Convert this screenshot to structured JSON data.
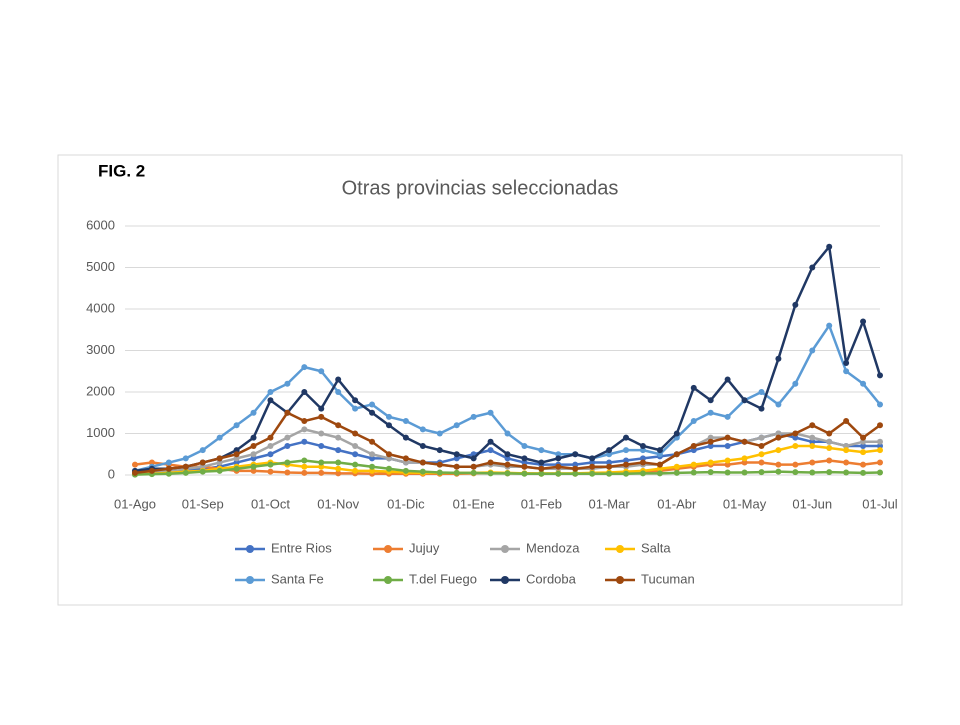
{
  "figure_label": "FIG. 2",
  "chart_data": {
    "type": "line",
    "title": "Otras provincias seleccionadas",
    "categories": [
      "01-Ago",
      null,
      null,
      null,
      "01-Sep",
      null,
      null,
      null,
      "01-Oct",
      null,
      null,
      null,
      "01-Nov",
      null,
      null,
      null,
      "01-Dic",
      null,
      null,
      null,
      "01-Ene",
      null,
      null,
      null,
      "01-Feb",
      null,
      null,
      null,
      "01-Mar",
      null,
      null,
      null,
      "01-Abr",
      null,
      null,
      null,
      "01-May",
      null,
      null,
      null,
      "01-Jun",
      null,
      null,
      null,
      "01-Jul"
    ],
    "ylim": [
      0,
      6000
    ],
    "yticks": [
      0,
      1000,
      2000,
      3000,
      4000,
      5000,
      6000
    ],
    "grid": true,
    "legend": "bottom",
    "series": [
      {
        "name": "Entre Rios",
        "color": "#4472c4",
        "values": [
          30,
          50,
          80,
          100,
          150,
          200,
          300,
          400,
          500,
          700,
          800,
          700,
          600,
          500,
          400,
          400,
          300,
          300,
          300,
          400,
          500,
          600,
          400,
          300,
          250,
          250,
          250,
          300,
          300,
          350,
          400,
          450,
          500,
          600,
          700,
          700,
          800,
          900,
          1000,
          900,
          800,
          800,
          700,
          700,
          700
        ]
      },
      {
        "name": "Jujuy",
        "color": "#ed7d31",
        "values": [
          250,
          300,
          250,
          200,
          200,
          150,
          100,
          100,
          80,
          60,
          50,
          50,
          40,
          40,
          30,
          30,
          30,
          30,
          30,
          30,
          40,
          50,
          40,
          40,
          30,
          30,
          30,
          40,
          50,
          60,
          80,
          100,
          150,
          200,
          250,
          250,
          300,
          300,
          250,
          250,
          300,
          350,
          300,
          250,
          300
        ]
      },
      {
        "name": "Mendoza",
        "color": "#a5a5a5",
        "values": [
          50,
          80,
          100,
          150,
          200,
          300,
          400,
          500,
          700,
          900,
          1100,
          1000,
          900,
          700,
          500,
          400,
          300,
          300,
          250,
          200,
          200,
          250,
          200,
          200,
          150,
          150,
          150,
          150,
          200,
          200,
          250,
          250,
          500,
          700,
          900,
          900,
          800,
          900,
          1000,
          1000,
          900,
          800,
          700,
          800,
          800
        ]
      },
      {
        "name": "Salta",
        "color": "#ffc000",
        "values": [
          20,
          30,
          50,
          80,
          100,
          150,
          200,
          250,
          300,
          250,
          200,
          200,
          150,
          100,
          100,
          80,
          60,
          50,
          50,
          50,
          50,
          60,
          50,
          40,
          40,
          40,
          40,
          50,
          60,
          80,
          100,
          150,
          200,
          250,
          300,
          350,
          400,
          500,
          600,
          700,
          700,
          650,
          600,
          550,
          600
        ]
      },
      {
        "name": "Santa Fe",
        "color": "#5b9bd5",
        "values": [
          100,
          200,
          300,
          400,
          600,
          900,
          1200,
          1500,
          2000,
          2200,
          2600,
          2500,
          2000,
          1600,
          1700,
          1400,
          1300,
          1100,
          1000,
          1200,
          1400,
          1500,
          1000,
          700,
          600,
          500,
          500,
          400,
          500,
          600,
          600,
          500,
          900,
          1300,
          1500,
          1400,
          1800,
          2000,
          1700,
          2200,
          3000,
          3600,
          2500,
          2200,
          1700
        ]
      },
      {
        "name": "T.del Fuego",
        "color": "#70ad47",
        "values": [
          10,
          20,
          30,
          50,
          80,
          100,
          150,
          200,
          250,
          300,
          350,
          300,
          300,
          250,
          200,
          150,
          100,
          80,
          60,
          50,
          50,
          40,
          40,
          30,
          30,
          30,
          30,
          30,
          30,
          30,
          40,
          40,
          50,
          60,
          70,
          60,
          60,
          70,
          80,
          70,
          60,
          70,
          60,
          50,
          60
        ]
      },
      {
        "name": "Cordoba",
        "color": "#203864",
        "values": [
          100,
          150,
          150,
          200,
          300,
          400,
          600,
          900,
          1800,
          1500,
          2000,
          1600,
          2300,
          1800,
          1500,
          1200,
          900,
          700,
          600,
          500,
          400,
          800,
          500,
          400,
          300,
          400,
          500,
          400,
          600,
          900,
          700,
          600,
          1000,
          2100,
          1800,
          2300,
          1800,
          1600,
          2800,
          4100,
          5000,
          5500,
          2700,
          3700,
          2400
        ]
      },
      {
        "name": "Tucuman",
        "color": "#9e480e",
        "values": [
          50,
          100,
          150,
          200,
          300,
          400,
          500,
          700,
          900,
          1500,
          1300,
          1400,
          1200,
          1000,
          800,
          500,
          400,
          300,
          250,
          200,
          200,
          300,
          250,
          200,
          150,
          200,
          150,
          200,
          200,
          250,
          300,
          250,
          500,
          700,
          800,
          900,
          800,
          700,
          900,
          1000,
          1200,
          1000,
          1300,
          900,
          1200
        ]
      }
    ]
  }
}
